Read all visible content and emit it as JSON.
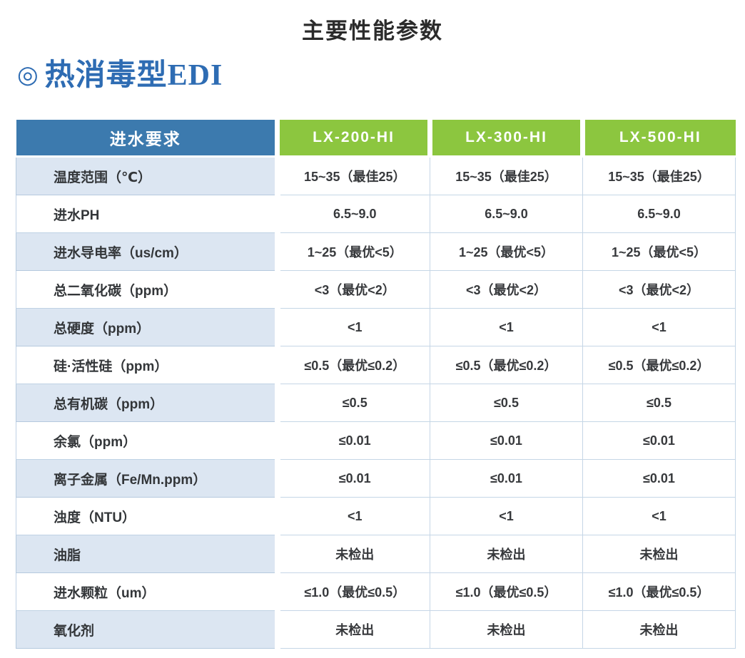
{
  "page": {
    "title": "主要性能参数",
    "section_bullet": "◎",
    "section_heading": "热消毒型EDI"
  },
  "table": {
    "header": {
      "label": "进水要求",
      "models": [
        "LX-200-HI",
        "LX-300-HI",
        "LX-500-HI"
      ]
    },
    "rows": [
      {
        "label": "温度范围（℃）",
        "values": [
          "15~35（最佳25）",
          "15~35（最佳25）",
          "15~35（最佳25）"
        ]
      },
      {
        "label": "进水PH",
        "values": [
          "6.5~9.0",
          "6.5~9.0",
          "6.5~9.0"
        ]
      },
      {
        "label": "进水导电率（us/cm）",
        "values": [
          "1~25（最优<5）",
          "1~25（最优<5）",
          "1~25（最优<5）"
        ]
      },
      {
        "label": "总二氧化碳（ppm）",
        "values": [
          "<3（最优<2）",
          "<3（最优<2）",
          "<3（最优<2）"
        ]
      },
      {
        "label": "总硬度（ppm）",
        "values": [
          "<1",
          "<1",
          "<1"
        ]
      },
      {
        "label": "硅·活性硅（ppm）",
        "values": [
          "≤0.5（最优≤0.2）",
          "≤0.5（最优≤0.2）",
          "≤0.5（最优≤0.2）"
        ]
      },
      {
        "label": "总有机碳（ppm）",
        "values": [
          "≤0.5",
          "≤0.5",
          "≤0.5"
        ]
      },
      {
        "label": "余氯（ppm）",
        "values": [
          "≤0.01",
          "≤0.01",
          "≤0.01"
        ]
      },
      {
        "label": "离子金属（Fe/Mn.ppm）",
        "values": [
          "≤0.01",
          "≤0.01",
          "≤0.01"
        ]
      },
      {
        "label": "浊度（NTU）",
        "values": [
          "<1",
          "<1",
          "<1"
        ]
      },
      {
        "label": "油脂",
        "values": [
          "未检出",
          "未检出",
          "未检出"
        ]
      },
      {
        "label": "进水颗粒（um）",
        "values": [
          "≤1.0（最优≤0.5）",
          "≤1.0（最优≤0.5）",
          "≤1.0（最优≤0.5）"
        ]
      },
      {
        "label": "氧化剂",
        "values": [
          "未检出",
          "未检出",
          "未检出"
        ]
      }
    ]
  },
  "colors": {
    "header_blue": "#3c7aae",
    "header_green": "#8cc63f",
    "heading_blue": "#2e6cb3",
    "row_tint": "#dce6f2"
  }
}
